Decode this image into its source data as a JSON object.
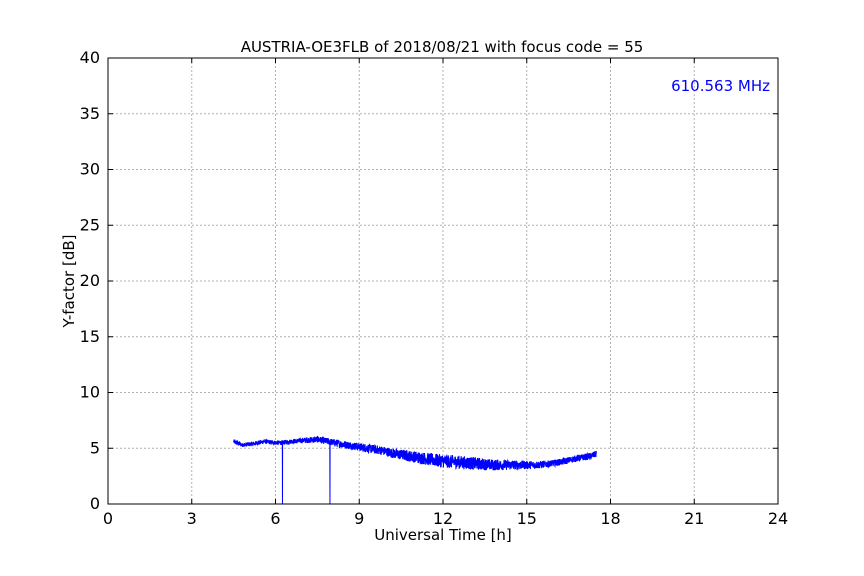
{
  "chart_data": {
    "type": "line",
    "title": "AUSTRIA-OE3FLB of 2018/08/21 with focus code = 55",
    "xlabel": "Universal Time [h]",
    "ylabel": "Y-factor [dB]",
    "annotation": "610.563 MHz",
    "annotation_color": "#0000ff",
    "line_color": "#0000ff",
    "xlim": [
      0,
      24
    ],
    "ylim": [
      0,
      40
    ],
    "xticks": [
      0,
      3,
      6,
      9,
      12,
      15,
      18,
      21,
      24
    ],
    "yticks": [
      0,
      5,
      10,
      15,
      20,
      25,
      30,
      35,
      40
    ],
    "grid": true,
    "series": [
      {
        "x": [
          4.5,
          4.8,
          5.2,
          5.6,
          6.0,
          6.2,
          6.5,
          7.0,
          7.5,
          7.9,
          8.3,
          8.8,
          9.3,
          9.8,
          10.3,
          10.8,
          11.3,
          11.8,
          12.3,
          12.8,
          13.3,
          13.8,
          14.3,
          14.8,
          15.3,
          15.8,
          16.3,
          16.8,
          17.3,
          17.5
        ],
        "y": [
          5.6,
          5.3,
          5.4,
          5.6,
          5.5,
          5.5,
          5.6,
          5.7,
          5.8,
          5.6,
          5.4,
          5.2,
          5.0,
          4.8,
          4.5,
          4.3,
          4.1,
          3.9,
          3.8,
          3.7,
          3.6,
          3.5,
          3.5,
          3.5,
          3.5,
          3.6,
          3.8,
          4.1,
          4.3,
          4.5
        ],
        "noise": [
          0.2,
          0.2,
          0.2,
          0.2,
          0.2,
          0.2,
          0.2,
          0.25,
          0.3,
          0.3,
          0.35,
          0.35,
          0.4,
          0.4,
          0.45,
          0.5,
          0.55,
          0.6,
          0.6,
          0.6,
          0.55,
          0.5,
          0.45,
          0.4,
          0.35,
          0.3,
          0.3,
          0.3,
          0.3,
          0.3
        ],
        "dropouts": [
          6.25,
          7.95
        ]
      }
    ]
  }
}
